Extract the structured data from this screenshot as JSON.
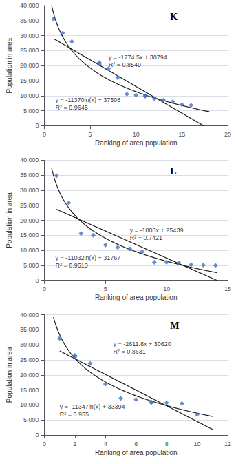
{
  "chart_data": [
    {
      "type": "scatter",
      "title": "K",
      "x": [
        1,
        2,
        3,
        6,
        6,
        7,
        8,
        9,
        10,
        11,
        11,
        12,
        13,
        14,
        15,
        16
      ],
      "values": [
        35500,
        30800,
        28000,
        21000,
        20500,
        19000,
        16000,
        10500,
        10200,
        10000,
        9800,
        9000,
        8500,
        8000,
        7000,
        6800
      ],
      "color": "#4472C4",
      "marker": "diamond",
      "xlim": [
        0,
        20
      ],
      "xticks": [
        0,
        5,
        10,
        15,
        20
      ],
      "ylim": [
        0,
        40000
      ],
      "yticks": [
        0,
        {
          "value": 5000,
          "label": "5,000"
        },
        {
          "value": 10000,
          "label": "10,000"
        },
        {
          "value": 15000,
          "label": "15,000"
        },
        {
          "value": 20000,
          "label": "20,000"
        },
        {
          "value": 25000,
          "label": "25,000"
        },
        {
          "value": 30000,
          "label": "30,000"
        },
        {
          "value": 35000,
          "label": "35,000"
        },
        {
          "value": 40000,
          "label": "40,000"
        }
      ],
      "xlabel": "Ranking of area population",
      "ylabel": "Population in area",
      "grid": "y",
      "fits": [
        {
          "type": "linear",
          "a": -1774.5,
          "b": 30794,
          "x_range": [
            1,
            18
          ],
          "color": "#1a1a1a"
        },
        {
          "type": "log",
          "a": -11370,
          "b": 37508,
          "x_range": [
            0.7,
            18
          ],
          "color": "#1a1a1a"
        }
      ],
      "annotations": [
        {
          "text": "y = -1774.5x + 30794\nR² = 0.8549",
          "x": 7.0,
          "y": 21500
        },
        {
          "text": "y = -11370ln(x) + 37508\nR² = 0.9645",
          "x": 1.2,
          "y": 7200
        }
      ]
    },
    {
      "type": "scatter",
      "title": "L",
      "x": [
        1,
        2,
        3,
        4,
        5,
        6,
        7,
        8,
        9,
        10,
        11,
        12,
        13,
        14
      ],
      "values": [
        34800,
        25800,
        15600,
        15000,
        11800,
        11000,
        10500,
        9500,
        6000,
        6000,
        5800,
        5200,
        5100,
        5000
      ],
      "color": "#4472C4",
      "marker": "diamond",
      "xlim": [
        0,
        15
      ],
      "xticks": [
        0,
        5,
        10,
        15
      ],
      "ylim": [
        0,
        40000
      ],
      "yticks": [
        0,
        {
          "value": 5000,
          "label": "5,000"
        },
        {
          "value": 10000,
          "label": "10,000"
        },
        {
          "value": 15000,
          "label": "15,000"
        },
        {
          "value": 20000,
          "label": "20,000"
        },
        {
          "value": 25000,
          "label": "25,000"
        },
        {
          "value": 30000,
          "label": "30,000"
        },
        {
          "value": 35000,
          "label": "35,000"
        },
        {
          "value": 40000,
          "label": "40,000"
        }
      ],
      "xlabel": "Ranking of area population",
      "ylabel": "Population in area",
      "grid": "y",
      "fits": [
        {
          "type": "linear",
          "a": -1803,
          "b": 25439,
          "x_range": [
            1,
            14.1
          ],
          "color": "#1a1a1a"
        },
        {
          "type": "log",
          "a": -11032,
          "b": 31767,
          "x_range": [
            0.6,
            14.1
          ],
          "color": "#1a1a1a"
        }
      ],
      "annotations": [
        {
          "text": "y = -1803x + 25439\nR² = 0.7421",
          "x": 7.0,
          "y": 15500
        },
        {
          "text": "y = -11032ln(x) + 31767\nR² = 0.9513",
          "x": 0.9,
          "y": 6200
        }
      ]
    },
    {
      "type": "scatter",
      "title": "M",
      "x": [
        1,
        2,
        2,
        3,
        4,
        5,
        6,
        7,
        7,
        8,
        9,
        10
      ],
      "values": [
        32200,
        26500,
        26000,
        23800,
        17000,
        12200,
        11800,
        11000,
        10800,
        10700,
        10500,
        6800
      ],
      "color": "#4472C4",
      "marker": "diamond",
      "xlim": [
        0,
        12
      ],
      "xticks": [
        0,
        2,
        4,
        6,
        8,
        10,
        12
      ],
      "ylim": [
        0,
        40000
      ],
      "yticks": [
        0,
        {
          "value": 5000,
          "label": "5,000"
        },
        {
          "value": 10000,
          "label": "10,000"
        },
        {
          "value": 15000,
          "label": "15,000"
        },
        {
          "value": 20000,
          "label": "20,000"
        },
        {
          "value": 25000,
          "label": "25,000"
        },
        {
          "value": 30000,
          "label": "30,000"
        },
        {
          "value": 35000,
          "label": "35,000"
        },
        {
          "value": 40000,
          "label": "40,000"
        }
      ],
      "xlabel": "Ranking of area population",
      "ylabel": "Population in area",
      "grid": "y",
      "fits": [
        {
          "type": "linear",
          "a": -2611.8,
          "b": 30620,
          "x_range": [
            1,
            11
          ],
          "color": "#1a1a1a"
        },
        {
          "type": "log",
          "a": -11347,
          "b": 33394,
          "x_range": [
            0.6,
            11
          ],
          "color": "#1a1a1a"
        }
      ],
      "annotations": [
        {
          "text": "y = -2611.8x + 30620\nR² = 0.8631",
          "x": 4.5,
          "y": 29000
        },
        {
          "text": "y = -11347ln(x) + 33394\nR² = 0.955",
          "x": 1.0,
          "y": 8200
        }
      ]
    }
  ]
}
